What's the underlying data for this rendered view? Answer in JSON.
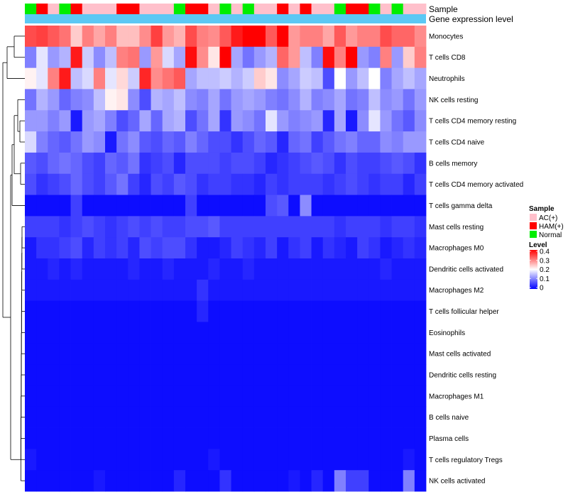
{
  "chart_data": {
    "type": "heatmap",
    "title": "",
    "annotation_labels": [
      "Sample",
      "Gene expression level"
    ],
    "rows": [
      "Monocytes",
      "T cells CD8",
      "Neutrophils",
      "NK cells resting",
      "T cells CD4 memory resting",
      "T cells CD4 naive",
      "B cells memory",
      "T cells CD4 memory activated",
      "T cells gamma delta",
      "Mast cells resting",
      "Macrophages M0",
      "Dendritic cells activated",
      "Macrophages M2",
      "T cells follicular helper",
      "Eosinophils",
      "Mast cells activated",
      "Dendritic cells resting",
      "Macrophages M1",
      "B cells naive",
      "Plasma cells",
      "T cells regulatory  Tregs",
      "NK cells activated"
    ],
    "sample_groups": [
      "Normal",
      "HAM(+)",
      "AC(+)",
      "Normal",
      "HAM(+)",
      "AC(+)",
      "AC(+)",
      "AC(+)",
      "HAM(+)",
      "HAM(+)",
      "AC(+)",
      "AC(+)",
      "AC(+)",
      "Normal",
      "HAM(+)",
      "HAM(+)",
      "AC(+)",
      "Normal",
      "AC(+)",
      "Normal",
      "AC(+)",
      "AC(+)",
      "HAM(+)",
      "AC(+)",
      "HAM(+)",
      "AC(+)",
      "AC(+)",
      "Normal",
      "HAM(+)",
      "HAM(+)",
      "Normal",
      "AC(+)",
      "Normal",
      "AC(+)",
      "AC(+)"
    ],
    "sample_colors": {
      "AC(+)": "#FFC0CB",
      "HAM(+)": "#FF0000",
      "Normal": "#00EE00"
    },
    "expression_bar_color": "#5CC8F4",
    "values": [
      [
        0.34,
        0.35,
        0.33,
        0.31,
        0.24,
        0.3,
        0.27,
        0.3,
        0.25,
        0.25,
        0.29,
        0.35,
        0.28,
        0.26,
        0.34,
        0.3,
        0.29,
        0.33,
        0.38,
        0.4,
        0.4,
        0.33,
        0.41,
        0.28,
        0.3,
        0.3,
        0.27,
        0.33,
        0.28,
        0.3,
        0.3,
        0.34,
        0.32,
        0.32,
        0.29
      ],
      [
        0.1,
        0.18,
        0.12,
        0.14,
        0.38,
        0.16,
        0.11,
        0.15,
        0.3,
        0.31,
        0.12,
        0.28,
        0.17,
        0.13,
        0.39,
        0.29,
        0.22,
        0.4,
        0.13,
        0.09,
        0.12,
        0.14,
        0.32,
        0.28,
        0.15,
        0.1,
        0.39,
        0.3,
        0.41,
        0.12,
        0.1,
        0.3,
        0.12,
        0.24,
        0.3
      ],
      [
        0.21,
        0.18,
        0.3,
        0.38,
        0.15,
        0.17,
        0.3,
        0.18,
        0.23,
        0.16,
        0.37,
        0.29,
        0.31,
        0.33,
        0.13,
        0.15,
        0.15,
        0.16,
        0.14,
        0.16,
        0.24,
        0.22,
        0.11,
        0.13,
        0.16,
        0.15,
        0.06,
        0.2,
        0.12,
        0.15,
        0.2,
        0.1,
        0.13,
        0.15,
        0.13
      ],
      [
        0.09,
        0.14,
        0.12,
        0.08,
        0.1,
        0.11,
        0.15,
        0.21,
        0.22,
        0.11,
        0.06,
        0.14,
        0.13,
        0.15,
        0.11,
        0.1,
        0.13,
        0.09,
        0.12,
        0.13,
        0.12,
        0.1,
        0.09,
        0.11,
        0.14,
        0.1,
        0.11,
        0.13,
        0.09,
        0.1,
        0.15,
        0.11,
        0.12,
        0.09,
        0.12
      ],
      [
        0.12,
        0.12,
        0.1,
        0.12,
        0.02,
        0.12,
        0.13,
        0.1,
        0.06,
        0.08,
        0.13,
        0.08,
        0.13,
        0.14,
        0.06,
        0.09,
        0.13,
        0.04,
        0.12,
        0.11,
        0.09,
        0.18,
        0.12,
        0.1,
        0.11,
        0.12,
        0.03,
        0.13,
        0.02,
        0.11,
        0.18,
        0.12,
        0.09,
        0.07,
        0.11
      ],
      [
        0.17,
        0.1,
        0.08,
        0.07,
        0.09,
        0.12,
        0.11,
        0.02,
        0.09,
        0.11,
        0.07,
        0.06,
        0.08,
        0.07,
        0.1,
        0.08,
        0.06,
        0.06,
        0.04,
        0.06,
        0.08,
        0.07,
        0.03,
        0.08,
        0.09,
        0.05,
        0.07,
        0.09,
        0.1,
        0.08,
        0.08,
        0.11,
        0.1,
        0.12,
        0.12
      ],
      [
        0.07,
        0.06,
        0.08,
        0.09,
        0.08,
        0.06,
        0.05,
        0.08,
        0.07,
        0.09,
        0.04,
        0.05,
        0.06,
        0.03,
        0.06,
        0.06,
        0.06,
        0.05,
        0.06,
        0.06,
        0.05,
        0.03,
        0.04,
        0.05,
        0.06,
        0.07,
        0.06,
        0.04,
        0.06,
        0.05,
        0.05,
        0.06,
        0.07,
        0.06,
        0.04
      ],
      [
        0.06,
        0.04,
        0.05,
        0.06,
        0.08,
        0.06,
        0.05,
        0.07,
        0.09,
        0.05,
        0.03,
        0.06,
        0.05,
        0.07,
        0.06,
        0.04,
        0.05,
        0.05,
        0.04,
        0.04,
        0.03,
        0.05,
        0.04,
        0.05,
        0.05,
        0.05,
        0.04,
        0.05,
        0.06,
        0.05,
        0.04,
        0.05,
        0.05,
        0.03,
        0.05
      ],
      [
        0.01,
        0.01,
        0.01,
        0.01,
        0.05,
        0.01,
        0.01,
        0.01,
        0.01,
        0.01,
        0.01,
        0.01,
        0.01,
        0.01,
        0.05,
        0.01,
        0.01,
        0.01,
        0.01,
        0.01,
        0.01,
        0.06,
        0.07,
        0.01,
        0.11,
        0.01,
        0.01,
        0.01,
        0.01,
        0.01,
        0.01,
        0.01,
        0.01,
        0.01,
        0.01
      ],
      [
        0.05,
        0.05,
        0.05,
        0.04,
        0.05,
        0.06,
        0.05,
        0.04,
        0.05,
        0.06,
        0.05,
        0.06,
        0.05,
        0.05,
        0.06,
        0.06,
        0.07,
        0.05,
        0.05,
        0.05,
        0.05,
        0.05,
        0.05,
        0.05,
        0.05,
        0.05,
        0.05,
        0.04,
        0.05,
        0.05,
        0.05,
        0.04,
        0.05,
        0.05,
        0.04
      ],
      [
        0.02,
        0.04,
        0.04,
        0.05,
        0.06,
        0.03,
        0.05,
        0.04,
        0.05,
        0.03,
        0.06,
        0.05,
        0.06,
        0.06,
        0.04,
        0.02,
        0.02,
        0.03,
        0.05,
        0.04,
        0.03,
        0.05,
        0.02,
        0.04,
        0.05,
        0.02,
        0.04,
        0.03,
        0.02,
        0.05,
        0.04,
        0.02,
        0.03,
        0.04,
        0.03
      ],
      [
        0.02,
        0.02,
        0.03,
        0.02,
        0.03,
        0.02,
        0.02,
        0.02,
        0.02,
        0.03,
        0.02,
        0.02,
        0.03,
        0.02,
        0.02,
        0.02,
        0.03,
        0.02,
        0.02,
        0.03,
        0.02,
        0.02,
        0.02,
        0.02,
        0.02,
        0.02,
        0.02,
        0.02,
        0.02,
        0.02,
        0.02,
        0.03,
        0.02,
        0.02,
        0.02
      ],
      [
        0.02,
        0.02,
        0.02,
        0.02,
        0.02,
        0.02,
        0.02,
        0.02,
        0.02,
        0.02,
        0.02,
        0.02,
        0.02,
        0.02,
        0.02,
        0.04,
        0.02,
        0.02,
        0.02,
        0.02,
        0.02,
        0.02,
        0.02,
        0.02,
        0.02,
        0.02,
        0.02,
        0.02,
        0.02,
        0.02,
        0.02,
        0.02,
        0.02,
        0.02,
        0.02
      ],
      [
        0.01,
        0.01,
        0.01,
        0.01,
        0.01,
        0.01,
        0.01,
        0.01,
        0.01,
        0.01,
        0.01,
        0.01,
        0.01,
        0.01,
        0.01,
        0.03,
        0.01,
        0.01,
        0.01,
        0.01,
        0.01,
        0.01,
        0.01,
        0.01,
        0.01,
        0.01,
        0.01,
        0.01,
        0.01,
        0.01,
        0.01,
        0.01,
        0.01,
        0.01,
        0.01
      ],
      [
        0.01,
        0.01,
        0.01,
        0.01,
        0.01,
        0.01,
        0.01,
        0.01,
        0.01,
        0.01,
        0.01,
        0.01,
        0.01,
        0.01,
        0.01,
        0.01,
        0.01,
        0.01,
        0.01,
        0.01,
        0.01,
        0.01,
        0.01,
        0.01,
        0.01,
        0.01,
        0.01,
        0.01,
        0.01,
        0.01,
        0.01,
        0.01,
        0.01,
        0.01,
        0.01
      ],
      [
        0.01,
        0.01,
        0.01,
        0.01,
        0.01,
        0.01,
        0.01,
        0.01,
        0.01,
        0.01,
        0.01,
        0.01,
        0.01,
        0.01,
        0.01,
        0.01,
        0.01,
        0.01,
        0.01,
        0.01,
        0.01,
        0.01,
        0.01,
        0.01,
        0.01,
        0.01,
        0.01,
        0.01,
        0.01,
        0.01,
        0.01,
        0.01,
        0.01,
        0.01,
        0.01
      ],
      [
        0.01,
        0.01,
        0.01,
        0.01,
        0.01,
        0.01,
        0.01,
        0.01,
        0.01,
        0.01,
        0.01,
        0.01,
        0.01,
        0.01,
        0.01,
        0.01,
        0.01,
        0.01,
        0.01,
        0.01,
        0.01,
        0.01,
        0.01,
        0.01,
        0.01,
        0.01,
        0.01,
        0.01,
        0.01,
        0.01,
        0.01,
        0.01,
        0.01,
        0.01,
        0.01
      ],
      [
        0.01,
        0.01,
        0.01,
        0.01,
        0.01,
        0.01,
        0.01,
        0.01,
        0.01,
        0.01,
        0.01,
        0.01,
        0.01,
        0.01,
        0.01,
        0.01,
        0.01,
        0.01,
        0.01,
        0.01,
        0.01,
        0.01,
        0.01,
        0.01,
        0.01,
        0.01,
        0.01,
        0.01,
        0.01,
        0.01,
        0.01,
        0.01,
        0.01,
        0.01,
        0.01
      ],
      [
        0.01,
        0.01,
        0.01,
        0.01,
        0.01,
        0.01,
        0.01,
        0.01,
        0.01,
        0.01,
        0.01,
        0.01,
        0.01,
        0.01,
        0.01,
        0.01,
        0.01,
        0.01,
        0.01,
        0.01,
        0.01,
        0.01,
        0.01,
        0.01,
        0.01,
        0.01,
        0.01,
        0.01,
        0.01,
        0.01,
        0.01,
        0.01,
        0.01,
        0.01,
        0.01
      ],
      [
        0.01,
        0.01,
        0.01,
        0.01,
        0.01,
        0.01,
        0.01,
        0.01,
        0.01,
        0.01,
        0.01,
        0.01,
        0.01,
        0.01,
        0.01,
        0.01,
        0.01,
        0.01,
        0.01,
        0.01,
        0.01,
        0.01,
        0.01,
        0.01,
        0.01,
        0.01,
        0.01,
        0.01,
        0.01,
        0.01,
        0.01,
        0.01,
        0.01,
        0.01,
        0.01
      ],
      [
        0.02,
        0.01,
        0.01,
        0.01,
        0.01,
        0.01,
        0.01,
        0.01,
        0.01,
        0.01,
        0.01,
        0.01,
        0.01,
        0.01,
        0.01,
        0.01,
        0.02,
        0.01,
        0.01,
        0.01,
        0.01,
        0.01,
        0.01,
        0.01,
        0.01,
        0.01,
        0.01,
        0.01,
        0.01,
        0.01,
        0.01,
        0.01,
        0.01,
        0.02,
        0.01
      ],
      [
        0.01,
        0.01,
        0.01,
        0.01,
        0.01,
        0.01,
        0.02,
        0.01,
        0.01,
        0.01,
        0.01,
        0.01,
        0.01,
        0.03,
        0.01,
        0.01,
        0.01,
        0.04,
        0.01,
        0.01,
        0.01,
        0.01,
        0.01,
        0.02,
        0.01,
        0.03,
        0.01,
        0.1,
        0.05,
        0.05,
        0.01,
        0.01,
        0.01,
        0.1,
        0.01
      ]
    ],
    "color_scale": {
      "min": 0,
      "max": 0.4,
      "stops": [
        {
          "value": 0,
          "color": "#0000FF"
        },
        {
          "value": 0.2,
          "color": "#FFFFFF"
        },
        {
          "value": 0.4,
          "color": "#FF0000"
        }
      ]
    },
    "legend": {
      "sample_title": "Sample",
      "sample_entries": [
        {
          "label": "AC(+)",
          "color": "#FFC0CB"
        },
        {
          "label": "HAM(+)",
          "color": "#FF0000"
        },
        {
          "label": "Normal",
          "color": "#00EE00"
        }
      ],
      "level_title": "Level",
      "level_ticks": [
        "0.4",
        "0.3",
        "0.2",
        "0.1",
        "0"
      ],
      "placement": "right"
    },
    "row_dendrogram": true
  }
}
